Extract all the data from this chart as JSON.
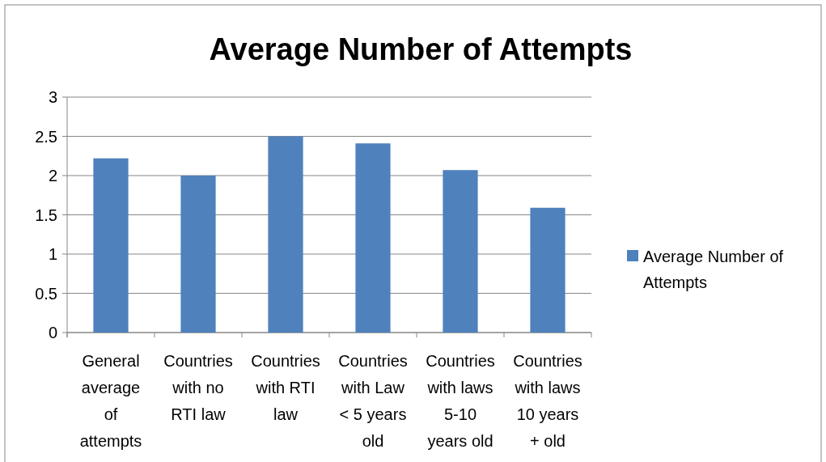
{
  "chart_data": {
    "type": "bar",
    "title": "Average Number of Attempts",
    "categories": [
      "General average of attempts",
      "Countries with no RTI law",
      "Countries with RTI law",
      "Countries with Law < 5 years old",
      "Countries with laws 5-10 years old",
      "Countries with laws 10 years + old"
    ],
    "series": [
      {
        "name": "Average Number of Attempts",
        "color": "#4f81bd",
        "values": [
          2.22,
          2.0,
          2.5,
          2.41,
          2.07,
          1.59
        ]
      }
    ],
    "ylim": [
      0,
      3
    ],
    "yticks": [
      0,
      {
        "value": 0.5,
        "label": "0.5"
      },
      1,
      {
        "value": 1.5,
        "label": "1.5"
      },
      2,
      {
        "value": 2.5,
        "label": "2.5"
      },
      3
    ],
    "grid": "y",
    "legend": "right"
  }
}
